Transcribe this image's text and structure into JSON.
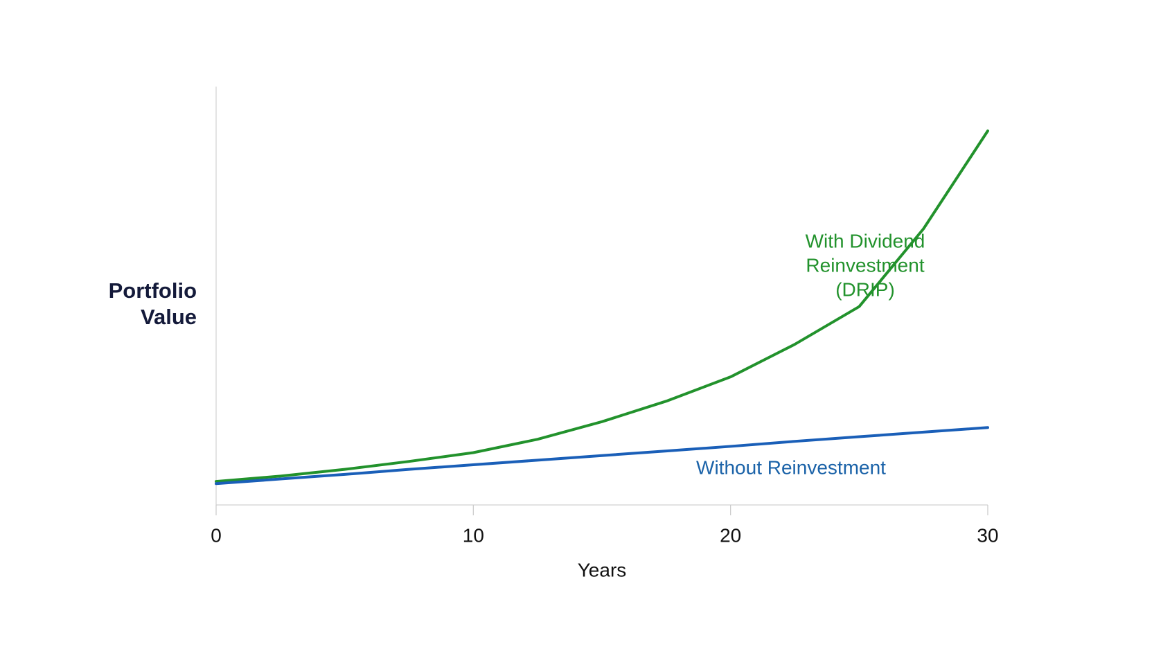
{
  "chart_data": {
    "type": "line",
    "ylabel": [
      "Portfolio",
      "Value"
    ],
    "xlabel": "Years",
    "x": [
      0,
      2.5,
      5,
      7.5,
      10,
      12.5,
      15,
      17.5,
      20,
      22.5,
      25,
      27.5,
      30
    ],
    "xlim": [
      0,
      30
    ],
    "xticks": [
      0,
      10,
      20,
      30
    ],
    "ylim": [
      0,
      100
    ],
    "grid": false,
    "series": [
      {
        "name": "With Dividend Reinvestment (DRIP)",
        "color": "#22922c",
        "values": [
          5.6,
          6.9,
          8.5,
          10.4,
          12.5,
          15.7,
          19.9,
          24.8,
          30.6,
          38.4,
          47.4,
          66,
          89.4
        ]
      },
      {
        "name": "Without Reinvestment",
        "color": "#1a5fb8",
        "values": [
          5.1,
          6.2,
          7.3,
          8.5,
          9.6,
          10.7,
          11.8,
          12.9,
          14.0,
          15.2,
          16.3,
          17.4,
          18.5
        ]
      }
    ],
    "annotations": [
      {
        "lines": [
          "With Dividend",
          "Reinvestment",
          "(DRIP)"
        ],
        "color": "#22922c"
      },
      {
        "lines": [
          "Without Reinvestment"
        ],
        "color": "#1a62a8"
      }
    ]
  }
}
